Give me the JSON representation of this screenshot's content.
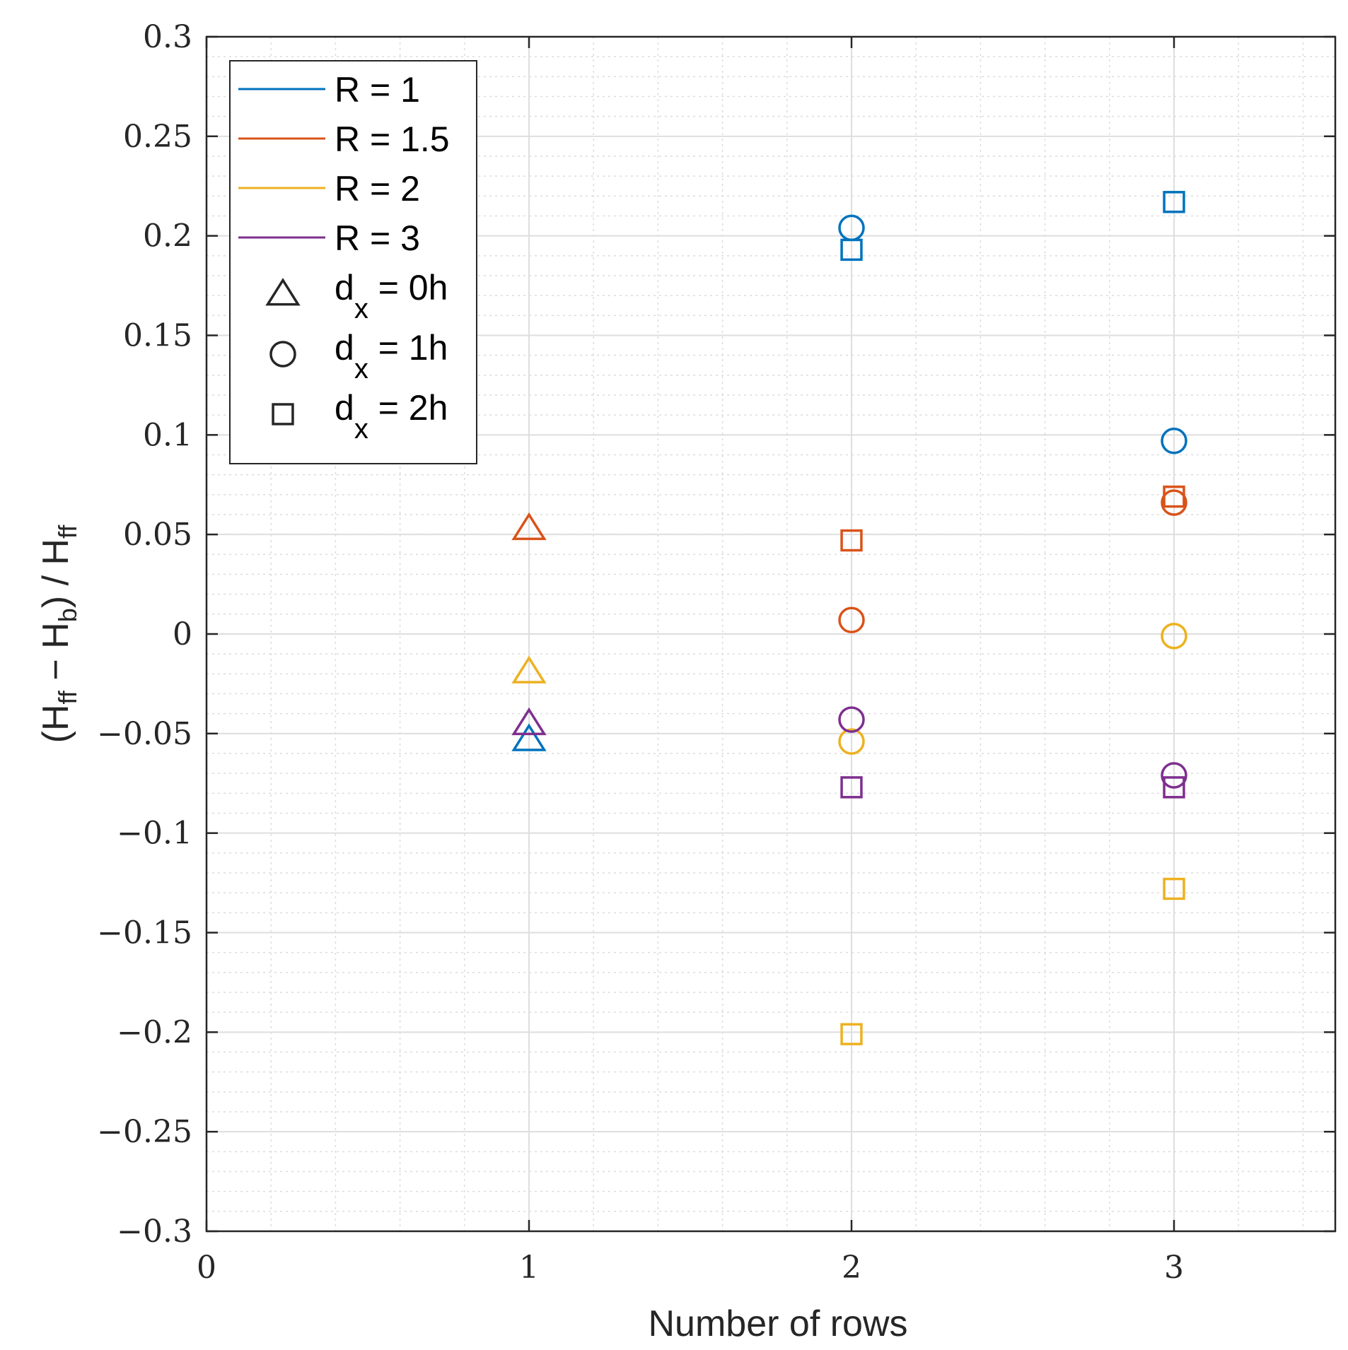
{
  "chart_data": {
    "type": "scatter",
    "title": "",
    "xlabel": "Number of rows",
    "ylabel": "(H_ff − H_b) / H_ff",
    "ylabel_parts": {
      "open_paren": "(H",
      "sub1": "ff",
      "minus": " − H",
      "sub2": "b",
      "close": ") / H",
      "sub3": "ff"
    },
    "xlim": [
      0,
      3.5
    ],
    "ylim": [
      -0.3,
      0.3
    ],
    "grid": true,
    "minor_grid": true,
    "x_ticks": [
      0,
      1,
      2,
      3
    ],
    "x_tick_labels": [
      "0",
      "1",
      "2",
      "3"
    ],
    "y_ticks": [
      0.3,
      0.25,
      0.2,
      0.15,
      0.1,
      0.05,
      0,
      -0.05,
      -0.1,
      -0.15,
      -0.2,
      -0.25,
      -0.3
    ],
    "y_tick_labels": [
      "0.3",
      "0.25",
      "0.2",
      "0.15",
      "0.1",
      "0.05",
      "0",
      "−0.05",
      "−0.1",
      "−0.15",
      "−0.2",
      "−0.25",
      "−0.3"
    ],
    "legend_position": "top-left",
    "series": [
      {
        "name": "R = 1",
        "color": "#0072BD",
        "points": [
          {
            "x": 1,
            "y": -0.053,
            "marker": "triangle"
          },
          {
            "x": 2,
            "y": 0.204,
            "marker": "circle"
          },
          {
            "x": 2,
            "y": 0.193,
            "marker": "square"
          },
          {
            "x": 3,
            "y": 0.097,
            "marker": "circle"
          },
          {
            "x": 3,
            "y": 0.217,
            "marker": "square"
          }
        ]
      },
      {
        "name": "R = 1.5",
        "color": "#D95319",
        "points": [
          {
            "x": 1,
            "y": 0.053,
            "marker": "triangle"
          },
          {
            "x": 2,
            "y": 0.007,
            "marker": "circle"
          },
          {
            "x": 2,
            "y": 0.047,
            "marker": "square"
          },
          {
            "x": 3,
            "y": 0.066,
            "marker": "circle"
          },
          {
            "x": 3,
            "y": 0.069,
            "marker": "square"
          }
        ]
      },
      {
        "name": "R = 2",
        "color": "#EDB120",
        "points": [
          {
            "x": 1,
            "y": -0.019,
            "marker": "triangle"
          },
          {
            "x": 2,
            "y": -0.054,
            "marker": "circle"
          },
          {
            "x": 2,
            "y": -0.201,
            "marker": "square"
          },
          {
            "x": 3,
            "y": -0.001,
            "marker": "circle"
          },
          {
            "x": 3,
            "y": -0.128,
            "marker": "square"
          }
        ]
      },
      {
        "name": "R = 3",
        "color": "#7E2F8E",
        "points": [
          {
            "x": 1,
            "y": -0.045,
            "marker": "triangle"
          },
          {
            "x": 2,
            "y": -0.043,
            "marker": "circle"
          },
          {
            "x": 2,
            "y": -0.077,
            "marker": "square"
          },
          {
            "x": 3,
            "y": -0.071,
            "marker": "circle"
          },
          {
            "x": 3,
            "y": -0.077,
            "marker": "square"
          }
        ]
      }
    ],
    "marker_legend": [
      {
        "marker": "triangle",
        "d": "d",
        "sub": "x",
        "rest": " = 0h"
      },
      {
        "marker": "circle",
        "d": "d",
        "sub": "x",
        "rest": " = 1h"
      },
      {
        "marker": "square",
        "d": "d",
        "sub": "x",
        "rest": " = 2h"
      }
    ]
  }
}
